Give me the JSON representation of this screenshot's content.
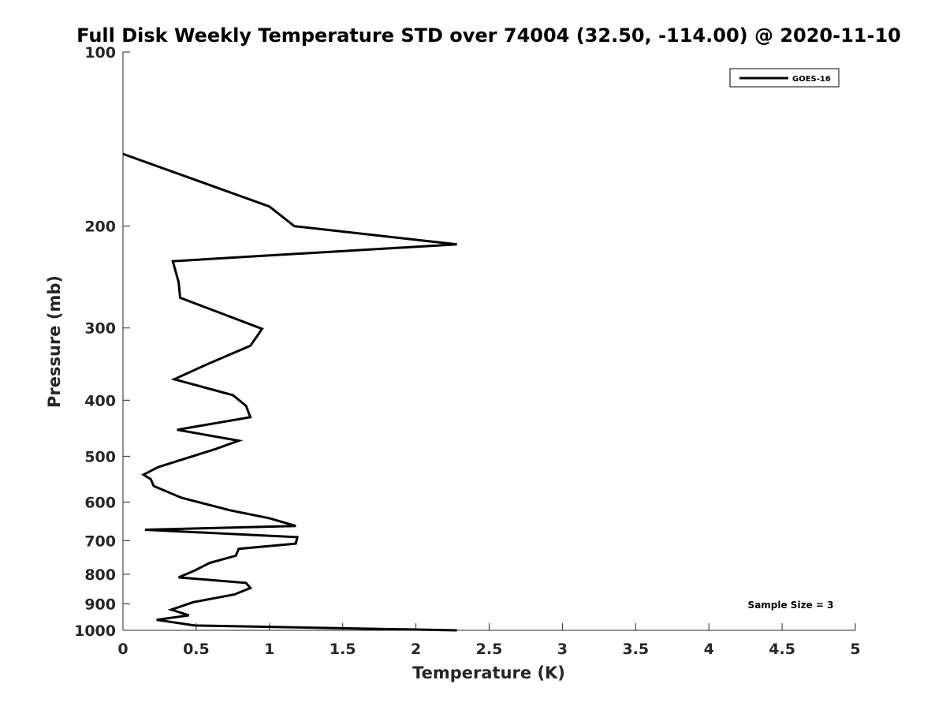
{
  "chart_data": {
    "type": "line",
    "title": "Full Disk Weekly Temperature STD over 74004 (32.50, -114.00) @ 2020-11-10",
    "xlabel": "Temperature (K)",
    "ylabel": "Pressure (mb)",
    "xlim": [
      0,
      5
    ],
    "ylim": [
      100,
      1000
    ],
    "y_scale": "log",
    "y_reversed": true,
    "x_ticks": [
      "0",
      "0.5",
      "1",
      "1.5",
      "2",
      "2.5",
      "3",
      "3.5",
      "4",
      "4.5",
      "5"
    ],
    "y_ticks": [
      "100",
      "200",
      "300",
      "400",
      "500",
      "600",
      "700",
      "800",
      "900",
      "1000"
    ],
    "legend_position": "top-right",
    "grid": false,
    "series": [
      {
        "name": "GOES-16",
        "color": "#000000",
        "points": [
          [
            0.0,
            150
          ],
          [
            1.0,
            185
          ],
          [
            1.17,
            200
          ],
          [
            2.28,
            215
          ],
          [
            0.34,
            230
          ],
          [
            0.38,
            250
          ],
          [
            0.39,
            266
          ],
          [
            0.95,
            301
          ],
          [
            0.87,
            322
          ],
          [
            0.57,
            347
          ],
          [
            0.35,
            368
          ],
          [
            0.75,
            392
          ],
          [
            0.84,
            409
          ],
          [
            0.87,
            428
          ],
          [
            0.37,
            450
          ],
          [
            0.79,
            470
          ],
          [
            0.63,
            486
          ],
          [
            0.24,
            522
          ],
          [
            0.14,
            538
          ],
          [
            0.19,
            548
          ],
          [
            0.21,
            563
          ],
          [
            0.4,
            590
          ],
          [
            0.73,
            620
          ],
          [
            1.0,
            640
          ],
          [
            1.18,
            660
          ],
          [
            0.15,
            670
          ],
          [
            1.19,
            690
          ],
          [
            1.18,
            708
          ],
          [
            0.79,
            723
          ],
          [
            0.77,
            743
          ],
          [
            0.59,
            765
          ],
          [
            0.49,
            788
          ],
          [
            0.38,
            810
          ],
          [
            0.84,
            828
          ],
          [
            0.87,
            845
          ],
          [
            0.76,
            867
          ],
          [
            0.48,
            894
          ],
          [
            0.33,
            921
          ],
          [
            0.45,
            942
          ],
          [
            0.23,
            959
          ],
          [
            0.49,
            981
          ],
          [
            2.28,
            1000
          ]
        ]
      }
    ],
    "annotation": "Sample Size = 3"
  }
}
